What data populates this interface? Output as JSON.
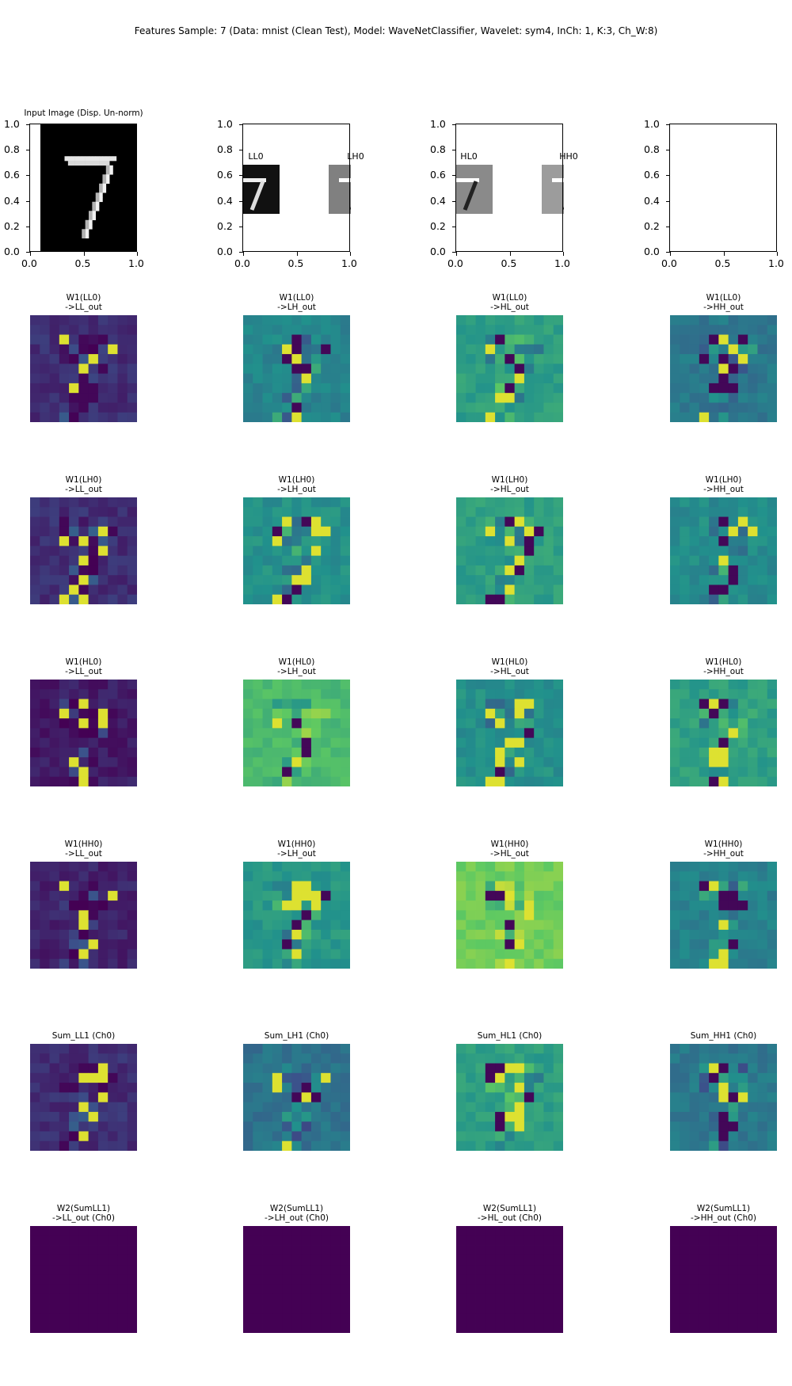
{
  "figure": {
    "suptitle": "Features Sample: 7 (Data: mnist (Clean Test), Model: WaveNetClassifier, Wavelet: sym4, InCh: 1, K:3, Ch_W:8)"
  },
  "chart_data": [
    {
      "type": "image",
      "title": "Input Image (Disp. Un-norm)",
      "colormap": "gray",
      "xlim": [
        0,
        1
      ],
      "ylim": [
        0,
        1
      ],
      "xticks": [
        "0.0",
        "0.5",
        "1.0"
      ],
      "yticks": [
        "0.0",
        "0.2",
        "0.4",
        "0.6",
        "0.8",
        "1.0"
      ],
      "content": "digit 7"
    },
    {
      "type": "image",
      "title": "",
      "xlim": [
        0,
        1
      ],
      "ylim": [
        0,
        1
      ],
      "xticks": [
        "0.0",
        "0.5",
        "1.0"
      ],
      "yticks": [
        "0.0",
        "0.2",
        "0.4",
        "0.6",
        "0.8",
        "1.0"
      ],
      "insets": [
        "LL0",
        "LH0"
      ]
    },
    {
      "type": "image",
      "title": "",
      "xlim": [
        0,
        1
      ],
      "ylim": [
        0,
        1
      ],
      "xticks": [
        "0.0",
        "0.5",
        "1.0"
      ],
      "yticks": [
        "0.0",
        "0.2",
        "0.4",
        "0.6",
        "0.8",
        "1.0"
      ],
      "insets": [
        "HL0",
        "HH0"
      ]
    },
    {
      "type": "image",
      "title": "",
      "xlim": [
        0,
        1
      ],
      "ylim": [
        0,
        1
      ],
      "xticks": [
        "0.0",
        "0.5",
        "1.0"
      ],
      "yticks": [
        "0.0",
        "0.2",
        "0.4",
        "0.6",
        "0.8",
        "1.0"
      ],
      "insets": []
    }
  ],
  "heatmaps": {
    "colormap": "viridis",
    "rows": [
      {
        "titles": [
          "W1(LL0)\n->LL_out",
          "W1(LL0)\n->LH_out",
          "W1(LL0)\n->HL_out",
          "W1(LL0)\n->HH_out"
        ],
        "base": [
          0.14,
          0.45,
          0.56,
          0.4
        ]
      },
      {
        "titles": [
          "W1(LH0)\n->LL_out",
          "W1(LH0)\n->LH_out",
          "W1(LH0)\n->HL_out",
          "W1(LH0)\n->HH_out"
        ],
        "base": [
          0.14,
          0.5,
          0.56,
          0.48
        ]
      },
      {
        "titles": [
          "W1(HL0)\n->LL_out",
          "W1(HL0)\n->LH_out",
          "W1(HL0)\n->HL_out",
          "W1(HL0)\n->HH_out"
        ],
        "base": [
          0.08,
          0.68,
          0.5,
          0.56
        ]
      },
      {
        "titles": [
          "W1(HH0)\n->LL_out",
          "W1(HH0)\n->LH_out",
          "W1(HH0)\n->HL_out",
          "W1(HH0)\n->HH_out"
        ],
        "base": [
          0.1,
          0.53,
          0.78,
          0.44
        ]
      },
      {
        "titles": [
          "Sum_LL1 (Ch0)",
          "Sum_LH1 (Ch0)",
          "Sum_HL1 (Ch0)",
          "Sum_HH1 (Ch0)"
        ],
        "base": [
          0.14,
          0.38,
          0.56,
          0.4
        ]
      },
      {
        "titles": [
          "W2(SumLL1)\n->LL_out (Ch0)",
          "W2(SumLL1)\n->LH_out (Ch0)",
          "W2(SumLL1)\n->HL_out (Ch0)",
          "W2(SumLL1)\n->HH_out (Ch0)"
        ],
        "base": [
          0.0,
          0.0,
          0.0,
          0.0
        ]
      }
    ]
  }
}
